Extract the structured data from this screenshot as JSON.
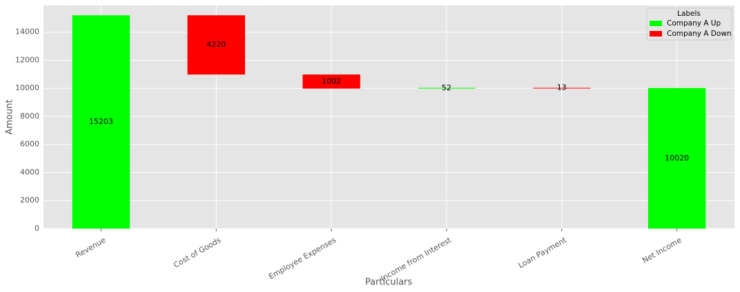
{
  "chart_data": {
    "type": "waterfall",
    "x_label": "Particulars",
    "y_label": "Amount",
    "categories": [
      "Revenue",
      "Cost of Goods",
      "Employee Expenses",
      "Income from Interest",
      "Loan Payment",
      "Net Income"
    ],
    "values": [
      15203,
      -4220,
      -1002,
      52,
      -13,
      10020
    ],
    "value_labels": [
      "15203",
      "4220",
      "1002",
      "52",
      "13",
      "10020"
    ],
    "series": [
      {
        "name": "Company A Up",
        "color": "#00ff00"
      },
      {
        "name": "Company A Down",
        "color": "#ff0000"
      }
    ],
    "legend_title": "Labels",
    "legend": "upper right",
    "ylim": [
      0,
      15900
    ],
    "yticks": [
      0,
      2000,
      4000,
      6000,
      8000,
      10000,
      12000,
      14000
    ],
    "grid": true
  }
}
